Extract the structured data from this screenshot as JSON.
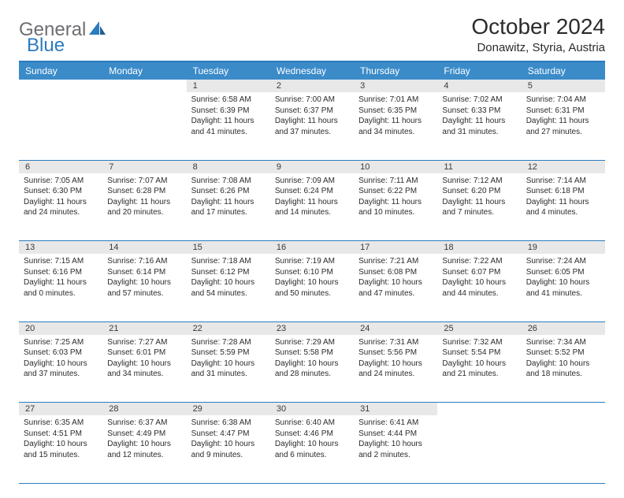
{
  "logo": {
    "text1": "General",
    "text2": "Blue"
  },
  "title": "October 2024",
  "location": "Donawitz, Styria, Austria",
  "colors": {
    "header_bg": "#3b8bc9",
    "border": "#2b7bbf",
    "daynum_bg": "#e8e8e8",
    "text": "#2b2b2b",
    "logo_gray": "#6d6e71",
    "logo_blue": "#2b7bbf",
    "page_bg": "#ffffff"
  },
  "columns": [
    "Sunday",
    "Monday",
    "Tuesday",
    "Wednesday",
    "Thursday",
    "Friday",
    "Saturday"
  ],
  "weeks": [
    [
      null,
      null,
      {
        "d": "1",
        "r": "Sunrise: 6:58 AM",
        "s": "Sunset: 6:39 PM",
        "l": "Daylight: 11 hours and 41 minutes."
      },
      {
        "d": "2",
        "r": "Sunrise: 7:00 AM",
        "s": "Sunset: 6:37 PM",
        "l": "Daylight: 11 hours and 37 minutes."
      },
      {
        "d": "3",
        "r": "Sunrise: 7:01 AM",
        "s": "Sunset: 6:35 PM",
        "l": "Daylight: 11 hours and 34 minutes."
      },
      {
        "d": "4",
        "r": "Sunrise: 7:02 AM",
        "s": "Sunset: 6:33 PM",
        "l": "Daylight: 11 hours and 31 minutes."
      },
      {
        "d": "5",
        "r": "Sunrise: 7:04 AM",
        "s": "Sunset: 6:31 PM",
        "l": "Daylight: 11 hours and 27 minutes."
      }
    ],
    [
      {
        "d": "6",
        "r": "Sunrise: 7:05 AM",
        "s": "Sunset: 6:30 PM",
        "l": "Daylight: 11 hours and 24 minutes."
      },
      {
        "d": "7",
        "r": "Sunrise: 7:07 AM",
        "s": "Sunset: 6:28 PM",
        "l": "Daylight: 11 hours and 20 minutes."
      },
      {
        "d": "8",
        "r": "Sunrise: 7:08 AM",
        "s": "Sunset: 6:26 PM",
        "l": "Daylight: 11 hours and 17 minutes."
      },
      {
        "d": "9",
        "r": "Sunrise: 7:09 AM",
        "s": "Sunset: 6:24 PM",
        "l": "Daylight: 11 hours and 14 minutes."
      },
      {
        "d": "10",
        "r": "Sunrise: 7:11 AM",
        "s": "Sunset: 6:22 PM",
        "l": "Daylight: 11 hours and 10 minutes."
      },
      {
        "d": "11",
        "r": "Sunrise: 7:12 AM",
        "s": "Sunset: 6:20 PM",
        "l": "Daylight: 11 hours and 7 minutes."
      },
      {
        "d": "12",
        "r": "Sunrise: 7:14 AM",
        "s": "Sunset: 6:18 PM",
        "l": "Daylight: 11 hours and 4 minutes."
      }
    ],
    [
      {
        "d": "13",
        "r": "Sunrise: 7:15 AM",
        "s": "Sunset: 6:16 PM",
        "l": "Daylight: 11 hours and 0 minutes."
      },
      {
        "d": "14",
        "r": "Sunrise: 7:16 AM",
        "s": "Sunset: 6:14 PM",
        "l": "Daylight: 10 hours and 57 minutes."
      },
      {
        "d": "15",
        "r": "Sunrise: 7:18 AM",
        "s": "Sunset: 6:12 PM",
        "l": "Daylight: 10 hours and 54 minutes."
      },
      {
        "d": "16",
        "r": "Sunrise: 7:19 AM",
        "s": "Sunset: 6:10 PM",
        "l": "Daylight: 10 hours and 50 minutes."
      },
      {
        "d": "17",
        "r": "Sunrise: 7:21 AM",
        "s": "Sunset: 6:08 PM",
        "l": "Daylight: 10 hours and 47 minutes."
      },
      {
        "d": "18",
        "r": "Sunrise: 7:22 AM",
        "s": "Sunset: 6:07 PM",
        "l": "Daylight: 10 hours and 44 minutes."
      },
      {
        "d": "19",
        "r": "Sunrise: 7:24 AM",
        "s": "Sunset: 6:05 PM",
        "l": "Daylight: 10 hours and 41 minutes."
      }
    ],
    [
      {
        "d": "20",
        "r": "Sunrise: 7:25 AM",
        "s": "Sunset: 6:03 PM",
        "l": "Daylight: 10 hours and 37 minutes."
      },
      {
        "d": "21",
        "r": "Sunrise: 7:27 AM",
        "s": "Sunset: 6:01 PM",
        "l": "Daylight: 10 hours and 34 minutes."
      },
      {
        "d": "22",
        "r": "Sunrise: 7:28 AM",
        "s": "Sunset: 5:59 PM",
        "l": "Daylight: 10 hours and 31 minutes."
      },
      {
        "d": "23",
        "r": "Sunrise: 7:29 AM",
        "s": "Sunset: 5:58 PM",
        "l": "Daylight: 10 hours and 28 minutes."
      },
      {
        "d": "24",
        "r": "Sunrise: 7:31 AM",
        "s": "Sunset: 5:56 PM",
        "l": "Daylight: 10 hours and 24 minutes."
      },
      {
        "d": "25",
        "r": "Sunrise: 7:32 AM",
        "s": "Sunset: 5:54 PM",
        "l": "Daylight: 10 hours and 21 minutes."
      },
      {
        "d": "26",
        "r": "Sunrise: 7:34 AM",
        "s": "Sunset: 5:52 PM",
        "l": "Daylight: 10 hours and 18 minutes."
      }
    ],
    [
      {
        "d": "27",
        "r": "Sunrise: 6:35 AM",
        "s": "Sunset: 4:51 PM",
        "l": "Daylight: 10 hours and 15 minutes."
      },
      {
        "d": "28",
        "r": "Sunrise: 6:37 AM",
        "s": "Sunset: 4:49 PM",
        "l": "Daylight: 10 hours and 12 minutes."
      },
      {
        "d": "29",
        "r": "Sunrise: 6:38 AM",
        "s": "Sunset: 4:47 PM",
        "l": "Daylight: 10 hours and 9 minutes."
      },
      {
        "d": "30",
        "r": "Sunrise: 6:40 AM",
        "s": "Sunset: 4:46 PM",
        "l": "Daylight: 10 hours and 6 minutes."
      },
      {
        "d": "31",
        "r": "Sunrise: 6:41 AM",
        "s": "Sunset: 4:44 PM",
        "l": "Daylight: 10 hours and 2 minutes."
      },
      null,
      null
    ]
  ]
}
